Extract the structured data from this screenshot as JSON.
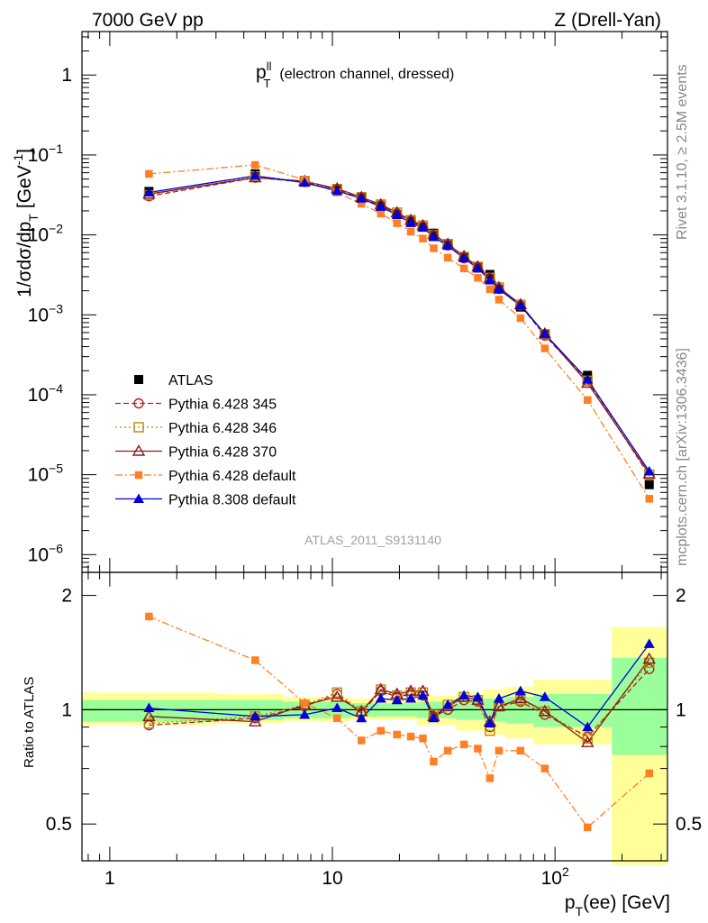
{
  "header": {
    "left": "7000 GeV pp",
    "right": "Z (Drell-Yan)"
  },
  "side_labels": {
    "rivet": "Rivet 3.1.10, ≥ 2.5M events",
    "mcplots": "mcplots.cern.ch [arXiv:1306.3436]"
  },
  "chart_data": {
    "type": "scatter",
    "title_main": "p",
    "title_sup": "ll",
    "title_sub": "T",
    "title_rest": "(electron channel, dressed)",
    "watermark": "ATLAS_2011_S9131140",
    "xlabel": "p",
    "xlabel_sub": "T",
    "xlabel_rest": "(ee) [GeV]",
    "ylabel": "1/σdσ/dp",
    "ylabel_sub": "T",
    "ylabel_rest": "[GeV",
    "ylabel_sup": "-1",
    "ylabel_end": "]",
    "ratio_ylabel": "Ratio to ATLAS",
    "x_scale": "log",
    "y_scale": "log",
    "xlim": [
      0.75,
      320
    ],
    "ylim": [
      6e-07,
      3.5
    ],
    "ratio_ylim": [
      0.4,
      2.3
    ],
    "x_tick_labels": [
      {
        "v": 1,
        "t": "1"
      },
      {
        "v": 10,
        "t": "10"
      },
      {
        "v": 100,
        "t": "10",
        "sup": "2"
      }
    ],
    "y_tick_labels": [
      {
        "v": 1,
        "t": "1"
      },
      {
        "v": 0.1,
        "t": "10",
        "sup": "−1"
      },
      {
        "v": 0.01,
        "t": "10",
        "sup": "−2"
      },
      {
        "v": 0.001,
        "t": "10",
        "sup": "−3"
      },
      {
        "v": 0.0001,
        "t": "10",
        "sup": "−4"
      },
      {
        "v": 1e-05,
        "t": "10",
        "sup": "−5"
      },
      {
        "v": 1e-06,
        "t": "10",
        "sup": "−6"
      }
    ],
    "ratio_tick_labels": [
      {
        "v": 2,
        "t": "2"
      },
      {
        "v": 1,
        "t": "1"
      },
      {
        "v": 0.5,
        "t": "0.5"
      }
    ],
    "x": [
      1.5,
      4.5,
      7.5,
      10.5,
      13.5,
      16.5,
      19.5,
      22.5,
      25.5,
      28.5,
      33.0,
      39.0,
      45.0,
      51.0,
      56.0,
      70.0,
      90.0,
      140.0,
      265.0
    ],
    "atlas": [
      0.035,
      0.058,
      0.048,
      0.037,
      0.03,
      0.023,
      0.018,
      0.0148,
      0.0125,
      0.0105,
      0.0075,
      0.0052,
      0.0039,
      0.0032,
      0.0021,
      0.00125,
      0.00058,
      0.000175,
      7.5e-06
    ],
    "band_inner": [
      {
        "x0": 0.75,
        "x1": 3.0,
        "lo": 0.93,
        "hi": 1.06
      },
      {
        "x0": 3.0,
        "x1": 6.0,
        "lo": 0.94,
        "hi": 1.06
      },
      {
        "x0": 6.0,
        "x1": 12.0,
        "lo": 0.95,
        "hi": 1.05
      },
      {
        "x0": 12.0,
        "x1": 24.0,
        "lo": 0.96,
        "hi": 1.04
      },
      {
        "x0": 24.0,
        "x1": 36.0,
        "lo": 0.95,
        "hi": 1.05
      },
      {
        "x0": 36.0,
        "x1": 48.0,
        "lo": 0.94,
        "hi": 1.06
      },
      {
        "x0": 48.0,
        "x1": 60.0,
        "lo": 0.93,
        "hi": 1.07
      },
      {
        "x0": 60.0,
        "x1": 80.0,
        "lo": 0.92,
        "hi": 1.08
      },
      {
        "x0": 80.0,
        "x1": 180.0,
        "lo": 0.9,
        "hi": 1.1
      },
      {
        "x0": 180.0,
        "x1": 320.0,
        "lo": 0.76,
        "hi": 1.37
      }
    ],
    "band_outer": [
      {
        "x0": 0.75,
        "x1": 3.0,
        "lo": 0.91,
        "hi": 1.11
      },
      {
        "x0": 3.0,
        "x1": 6.0,
        "lo": 0.92,
        "hi": 1.1
      },
      {
        "x0": 6.0,
        "x1": 12.0,
        "lo": 0.93,
        "hi": 1.08
      },
      {
        "x0": 12.0,
        "x1": 24.0,
        "lo": 0.94,
        "hi": 1.07
      },
      {
        "x0": 24.0,
        "x1": 36.0,
        "lo": 0.91,
        "hi": 1.09
      },
      {
        "x0": 36.0,
        "x1": 48.0,
        "lo": 0.88,
        "hi": 1.11
      },
      {
        "x0": 48.0,
        "x1": 60.0,
        "lo": 0.86,
        "hi": 1.13
      },
      {
        "x0": 60.0,
        "x1": 80.0,
        "lo": 0.84,
        "hi": 1.15
      },
      {
        "x0": 80.0,
        "x1": 180.0,
        "lo": 0.81,
        "hi": 1.2
      },
      {
        "x0": 180.0,
        "x1": 320.0,
        "lo": 0.39,
        "hi": 1.65
      }
    ],
    "series": [
      {
        "name": "Pythia 6.428 345",
        "color": "#b22222",
        "marker": "circle-open",
        "dash": "6,3",
        "values": [
          0.0305,
          0.052,
          0.046,
          0.037,
          0.029,
          0.0235,
          0.0185,
          0.015,
          0.0128,
          0.0098,
          0.0074,
          0.0051,
          0.0039,
          0.0029,
          0.0021,
          0.00131,
          0.00055,
          0.00015,
          9.7e-06
        ],
        "ratio": [
          0.91,
          0.95,
          1.02,
          1.1,
          0.98,
          1.12,
          1.08,
          1.1,
          1.09,
          0.96,
          1.0,
          1.06,
          1.05,
          0.9,
          1.02,
          1.05,
          0.97,
          0.85,
          1.28
        ]
      },
      {
        "name": "Pythia 6.428 346",
        "color": "#b8860b",
        "marker": "square-open",
        "dash": "2,3",
        "values": [
          0.0315,
          0.054,
          0.047,
          0.0375,
          0.0295,
          0.024,
          0.019,
          0.0153,
          0.0131,
          0.01,
          0.0077,
          0.0053,
          0.004,
          0.0029,
          0.0022,
          0.00134,
          0.00057,
          0.00015,
          1e-05
        ],
        "ratio": [
          0.92,
          0.96,
          1.03,
          1.11,
          0.99,
          1.13,
          1.09,
          1.11,
          1.11,
          0.97,
          1.03,
          1.08,
          1.06,
          0.88,
          1.02,
          1.06,
          0.99,
          0.84,
          1.33
        ]
      },
      {
        "name": "Pythia 6.428 370",
        "color": "#8b1a1a",
        "marker": "triangle-open",
        "dash": "",
        "values": [
          0.0325,
          0.052,
          0.047,
          0.038,
          0.0295,
          0.024,
          0.019,
          0.0153,
          0.0131,
          0.0101,
          0.0077,
          0.0054,
          0.004,
          0.0029,
          0.0022,
          0.00135,
          0.00058,
          0.00014,
          1.03e-05
        ],
        "ratio": [
          0.96,
          0.93,
          1.03,
          1.08,
          0.99,
          1.13,
          1.1,
          1.12,
          1.12,
          0.96,
          1.02,
          1.08,
          1.06,
          0.93,
          1.02,
          1.07,
          0.99,
          0.82,
          1.36
        ]
      },
      {
        "name": "Pythia 6.428 default",
        "color": "#ff7f24",
        "marker": "square-filled",
        "dash": "8,3,2,3",
        "values": [
          0.058,
          0.075,
          0.049,
          0.034,
          0.0245,
          0.0185,
          0.014,
          0.011,
          0.009,
          0.0068,
          0.0052,
          0.0038,
          0.0029,
          0.0021,
          0.00155,
          0.00091,
          0.00038,
          8.6e-05,
          5e-06
        ],
        "ratio": [
          1.76,
          1.35,
          1.04,
          0.95,
          0.83,
          0.88,
          0.86,
          0.85,
          0.84,
          0.73,
          0.78,
          0.81,
          0.79,
          0.66,
          0.78,
          0.78,
          0.7,
          0.49,
          0.68
        ]
      },
      {
        "name": "Pythia 8.308 default",
        "color": "#0000dd",
        "marker": "triangle-filled",
        "dash": "",
        "values": [
          0.034,
          0.055,
          0.045,
          0.0355,
          0.0285,
          0.0225,
          0.0178,
          0.0141,
          0.0123,
          0.0094,
          0.0073,
          0.0051,
          0.0038,
          0.0027,
          0.0021,
          0.0013,
          0.00058,
          0.000155,
          1.1e-05
        ],
        "ratio": [
          1.01,
          0.96,
          0.97,
          1.01,
          0.95,
          1.07,
          1.06,
          1.07,
          1.09,
          0.95,
          1.03,
          1.09,
          1.08,
          0.92,
          1.07,
          1.12,
          1.08,
          0.9,
          1.49
        ]
      }
    ],
    "legend": {
      "placement": "bottom-left",
      "entries": [
        "ATLAS",
        "Pythia 6.428 345",
        "Pythia 6.428 346",
        "Pythia 6.428 370",
        "Pythia 6.428 default",
        "Pythia 8.308 default"
      ]
    },
    "colors": {
      "data": "#000000",
      "band_inner": "#9aff9a",
      "band_outer": "#ffff99",
      "axis": "#000000",
      "side_text": "#888888"
    }
  }
}
